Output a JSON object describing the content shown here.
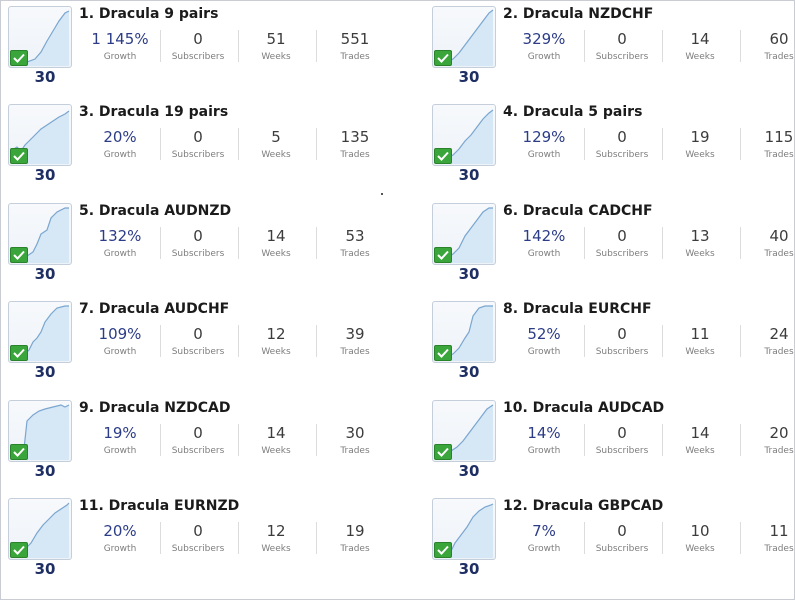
{
  "labels": {
    "growth": "Growth",
    "subscribers": "Subscribers",
    "weeks": "Weeks",
    "trades": "Trades"
  },
  "cards": [
    {
      "title": "1. Dracula 9 pairs",
      "growth": "1 145%",
      "subscribers": "0",
      "weeks": "51",
      "trades": "551",
      "period": "30"
    },
    {
      "title": "2. Dracula NZDCHF",
      "growth": "329%",
      "subscribers": "0",
      "weeks": "14",
      "trades": "60",
      "period": "30"
    },
    {
      "title": "3. Dracula 19 pairs",
      "growth": "20%",
      "subscribers": "0",
      "weeks": "5",
      "trades": "135",
      "period": "30"
    },
    {
      "title": "4. Dracula 5 pairs",
      "growth": "129%",
      "subscribers": "0",
      "weeks": "19",
      "trades": "115",
      "period": "30"
    },
    {
      "title": "5. Dracula AUDNZD",
      "growth": "132%",
      "subscribers": "0",
      "weeks": "14",
      "trades": "53",
      "period": "30"
    },
    {
      "title": "6. Dracula CADCHF",
      "growth": "142%",
      "subscribers": "0",
      "weeks": "13",
      "trades": "40",
      "period": "30"
    },
    {
      "title": "7. Dracula AUDCHF",
      "growth": "109%",
      "subscribers": "0",
      "weeks": "12",
      "trades": "39",
      "period": "30"
    },
    {
      "title": "8. Dracula EURCHF",
      "growth": "52%",
      "subscribers": "0",
      "weeks": "11",
      "trades": "24",
      "period": "30"
    },
    {
      "title": "9. Dracula NZDCAD",
      "growth": "19%",
      "subscribers": "0",
      "weeks": "14",
      "trades": "30",
      "period": "30"
    },
    {
      "title": "10. Dracula AUDCAD",
      "growth": "14%",
      "subscribers": "0",
      "weeks": "14",
      "trades": "20",
      "period": "30"
    },
    {
      "title": "11. Dracula EURNZD",
      "growth": "20%",
      "subscribers": "0",
      "weeks": "12",
      "trades": "19",
      "period": "30"
    },
    {
      "title": "12. Dracula GBPCAD",
      "growth": "7%",
      "subscribers": "0",
      "weeks": "10",
      "trades": "11",
      "period": "30"
    }
  ],
  "icons": {
    "thumbnail": "growth-chart-icon",
    "badge": "checkmark-icon"
  },
  "colors": {
    "growth_text": "#2c3c87",
    "period_text": "#1f2f63",
    "chart_line": "#7aa6cf",
    "chart_fill": "#d6e7f6",
    "check_bg": "#3aa53a"
  }
}
